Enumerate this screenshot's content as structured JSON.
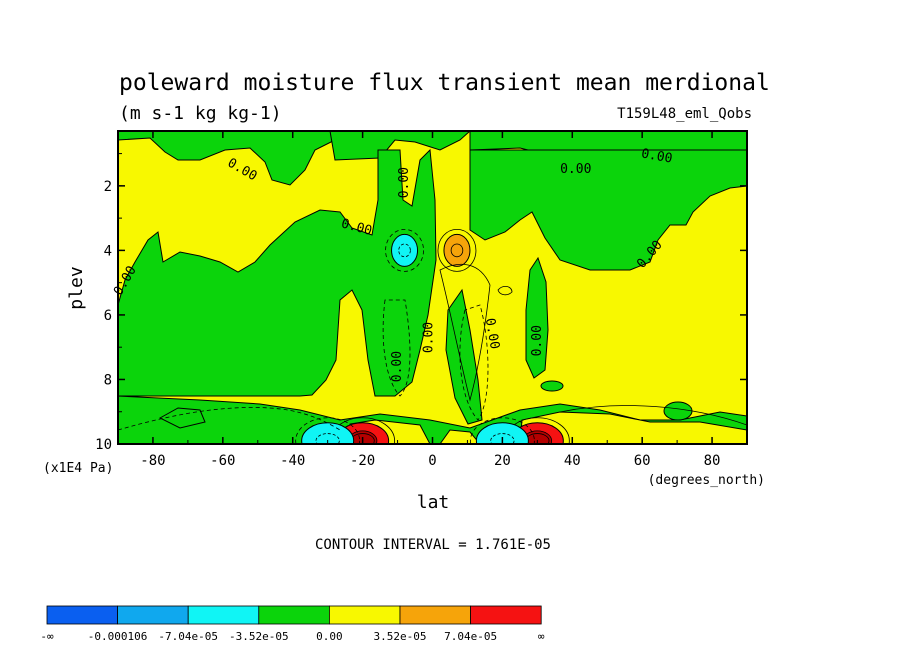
{
  "chart_data": {
    "type": "heatmap",
    "title": "poleward moisture flux transient mean merdional",
    "subtitle": "(m s-1 kg kg-1)",
    "dataset_label": "T159L48_eml_Qobs",
    "xlabel": "lat",
    "xunits": "(degrees_north)",
    "ylabel": "plev",
    "yunits": "(x1E4 Pa)",
    "xlim": [
      -90,
      90
    ],
    "ylim": [
      0.3,
      10
    ],
    "y_reversed": true,
    "x_ticks": [
      -80,
      -60,
      -40,
      -20,
      0,
      20,
      40,
      60,
      80
    ],
    "x_tick_labels": [
      "-80",
      "-60",
      "-40",
      "-20",
      "0",
      "20",
      "40",
      "60",
      "80"
    ],
    "y_ticks": [
      2,
      4,
      6,
      8,
      10
    ],
    "y_tick_labels": [
      "2",
      "4",
      "6",
      "8",
      "10"
    ],
    "contour_interval_text": "CONTOUR INTERVAL = 1.761E-05",
    "zero_contour_label": "0.00",
    "color_levels": [
      -0.000106,
      -7.04e-05,
      -3.52e-05,
      0.0,
      3.52e-05,
      7.04e-05
    ],
    "colorbar": {
      "colors": [
        "#0a5ff0",
        "#10a8ee",
        "#10f5f5",
        "#0bd40b",
        "#f8f800",
        "#f6a40a",
        "#f51212"
      ],
      "labels": [
        "-∞",
        "-0.000106",
        "-7.04e-05",
        "-3.52e-05",
        "0.00",
        "3.52e-05",
        "7.04e-05",
        "∞"
      ]
    },
    "features": [
      {
        "name": "positive-core-north",
        "lat": 7,
        "plev": 4.0,
        "sign": "positive",
        "level": "orange"
      },
      {
        "name": "negative-core-south",
        "lat": -8,
        "plev": 4.0,
        "sign": "negative",
        "level": "cyan"
      },
      {
        "name": "surface-max-south",
        "lat": -20,
        "plev": 9.9,
        "sign": "positive",
        "level": "red"
      },
      {
        "name": "surface-max-north",
        "lat": 30,
        "plev": 9.9,
        "sign": "positive",
        "level": "red"
      },
      {
        "name": "surface-min-south",
        "lat": -30,
        "plev": 9.9,
        "sign": "negative",
        "level": "cyan"
      },
      {
        "name": "surface-min-north",
        "lat": 20,
        "plev": 9.9,
        "sign": "negative",
        "level": "cyan"
      }
    ],
    "grid": false,
    "legend": "bottom"
  }
}
